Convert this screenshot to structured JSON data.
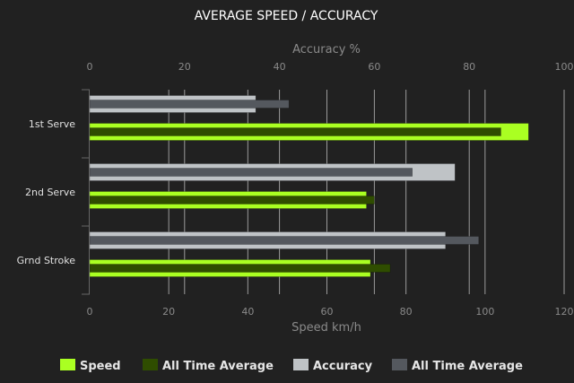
{
  "chart_data": {
    "type": "bar",
    "orientation": "horizontal",
    "title": "AVERAGE SPEED / ACCURACY",
    "categories": [
      "1st Serve",
      "2nd Serve",
      "Grnd Stroke"
    ],
    "top_axis": {
      "label": "Accuracy %",
      "range": [
        0,
        100
      ],
      "ticks": [
        "0",
        "20",
        "40",
        "60",
        "80",
        "100"
      ]
    },
    "bottom_axis": {
      "label": "Speed km/h",
      "range": [
        0,
        120
      ],
      "ticks": [
        "0",
        "20",
        "40",
        "60",
        "80",
        "100",
        "120"
      ]
    },
    "grid": true,
    "legend_position": "bottom",
    "series": [
      {
        "name": "Speed",
        "axis": "bottom",
        "color": "#aaff22",
        "values": [
          111,
          70,
          71
        ]
      },
      {
        "name": "All Time Average",
        "axis": "bottom",
        "color": "#2f4d00",
        "values": [
          104,
          72,
          76
        ]
      },
      {
        "name": "Accuracy",
        "axis": "top",
        "color": "#bfc3c6",
        "values": [
          35,
          77,
          75
        ]
      },
      {
        "name": "All Time Average",
        "axis": "top",
        "color": "#54585e",
        "values": [
          42,
          68,
          82
        ]
      }
    ]
  }
}
